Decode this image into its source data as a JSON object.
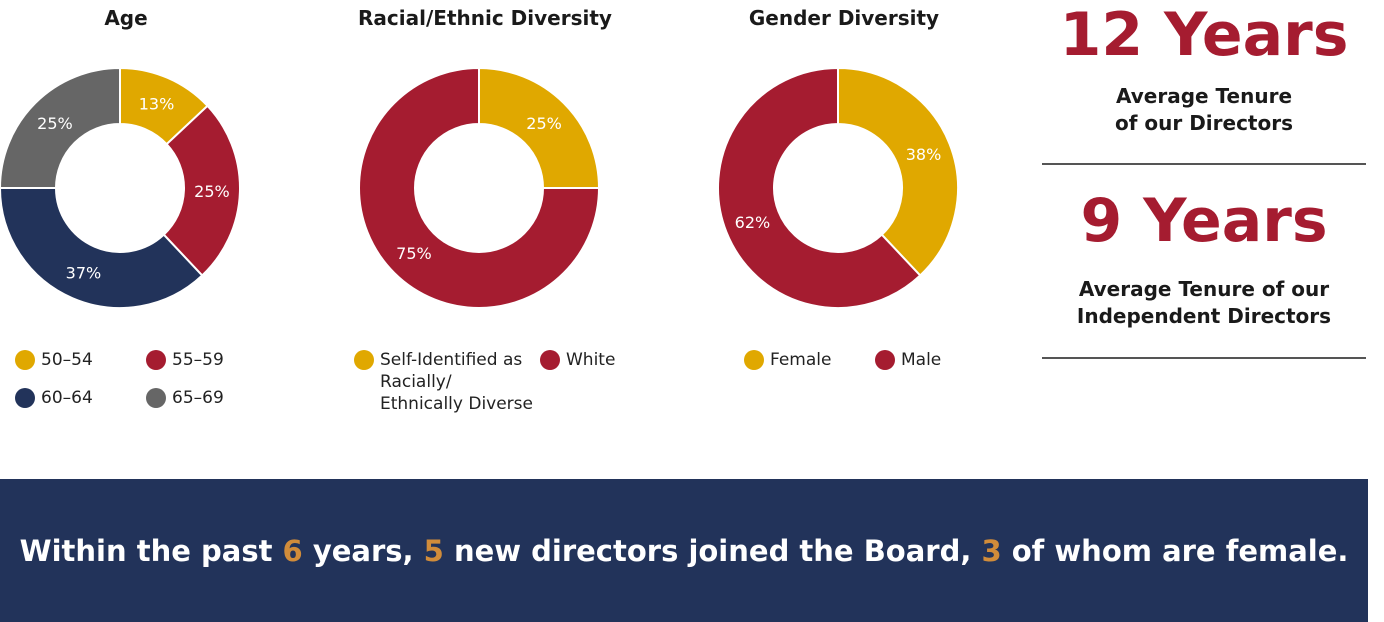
{
  "chart_data": [
    {
      "type": "pie",
      "title": "Age",
      "categories": [
        "50–54",
        "55–59",
        "60–64",
        "65–69"
      ],
      "values": [
        13,
        25,
        37,
        25
      ],
      "value_labels": [
        "13%",
        "25%",
        "37%",
        "25%"
      ],
      "colors": [
        "#e0a800",
        "#a51c30",
        "#22335a",
        "#666666"
      ],
      "legend": [
        {
          "label": "50–54",
          "color": "#e0a800"
        },
        {
          "label": "55–59",
          "color": "#a51c30"
        },
        {
          "label": "60–64",
          "color": "#22335a"
        },
        {
          "label": "65–69",
          "color": "#666666"
        }
      ]
    },
    {
      "type": "pie",
      "title": "Racial/Ethnic Diversity",
      "categories": [
        "Self-Identified as Racially/ Ethnically Diverse",
        "White"
      ],
      "values": [
        25,
        75
      ],
      "value_labels": [
        "25%",
        "75%"
      ],
      "colors": [
        "#e0a800",
        "#a51c30"
      ],
      "legend": [
        {
          "label": "Self-Identified as Racially/ Ethnically Diverse",
          "color": "#e0a800"
        },
        {
          "label": "White",
          "color": "#a51c30"
        }
      ]
    },
    {
      "type": "pie",
      "title": "Gender Diversity",
      "categories": [
        "Female",
        "Male"
      ],
      "values": [
        38,
        62
      ],
      "value_labels": [
        "38%",
        "62%"
      ],
      "colors": [
        "#e0a800",
        "#a51c30"
      ],
      "legend": [
        {
          "label": "Female",
          "color": "#e0a800"
        },
        {
          "label": "Male",
          "color": "#a51c30"
        }
      ]
    }
  ],
  "stats": {
    "director_tenure": {
      "value": "12 Years",
      "label_line1": "Average Tenure",
      "label_line2": "of our Directors"
    },
    "independent_tenure": {
      "value": "9 Years",
      "label_line1": "Average Tenure of our",
      "label_line2": "Independent Directors"
    }
  },
  "banner": {
    "part1": "Within the past ",
    "num1": "6",
    "part2": " years, ",
    "num2": "5",
    "part3": " new directors joined the Board, ",
    "num3": "3",
    "part4": " of whom are female."
  },
  "colors": {
    "gold": "#e0a800",
    "crimson": "#a51c30",
    "navy": "#22335a",
    "gray": "#666666",
    "highlight": "#d18c3a"
  }
}
